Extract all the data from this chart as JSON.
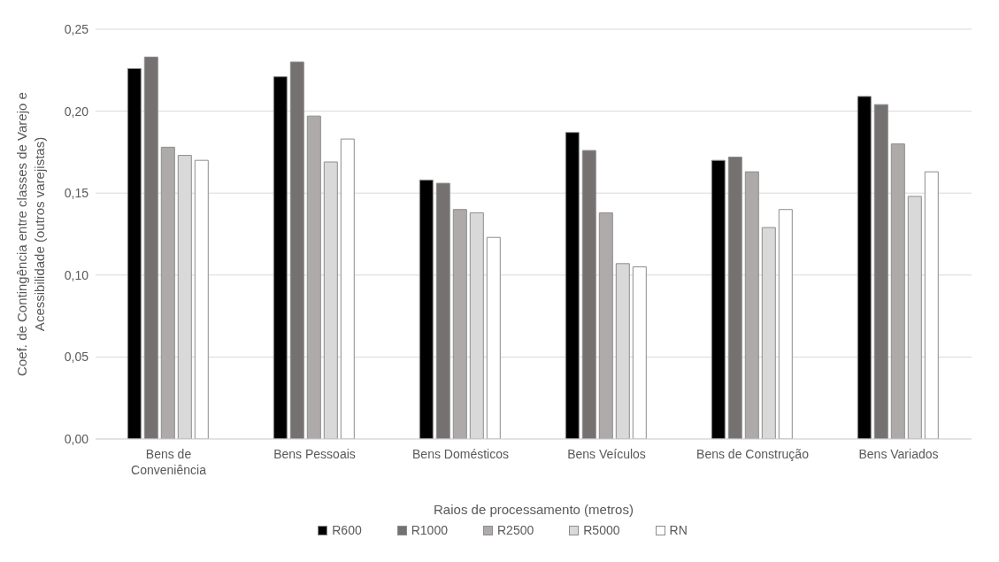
{
  "chart_data": {
    "type": "bar",
    "xlabel": "Raios de processamento (metros)",
    "ylabel": "Coef. de Contingência entre classes de Varejo e Acessibilidade (outros varejistas)",
    "categories": [
      "Bens de Conveniência",
      "Bens Pessoais",
      "Bens Domésticos",
      "Bens Veículos",
      "Bens de Construção",
      "Bens Variados"
    ],
    "series": [
      {
        "name": "R600",
        "color": "#000000",
        "values": [
          0.226,
          0.221,
          0.158,
          0.187,
          0.17,
          0.209
        ]
      },
      {
        "name": "R1000",
        "color": "#767171",
        "values": [
          0.233,
          0.23,
          0.156,
          0.176,
          0.172,
          0.204
        ]
      },
      {
        "name": "R2500",
        "color": "#aeaaaa",
        "values": [
          0.178,
          0.197,
          0.14,
          0.138,
          0.163,
          0.18
        ]
      },
      {
        "name": "R5000",
        "color": "#d9d9d9",
        "values": [
          0.173,
          0.169,
          0.138,
          0.107,
          0.129,
          0.148
        ]
      },
      {
        "name": "RN",
        "color": "#ffffff",
        "values": [
          0.17,
          0.183,
          0.123,
          0.105,
          0.14,
          0.163
        ]
      }
    ],
    "ylim": [
      0,
      0.25
    ],
    "yticks": [
      {
        "value": 0,
        "label": "0,00"
      },
      {
        "value": 0.05,
        "label": "0,05"
      },
      {
        "value": 0.1,
        "label": "0,10"
      },
      {
        "value": 0.15,
        "label": "0,15"
      },
      {
        "value": 0.2,
        "label": "0,20"
      },
      {
        "value": 0.25,
        "label": "0,25"
      }
    ],
    "grid": "y",
    "legend": "bottom"
  }
}
